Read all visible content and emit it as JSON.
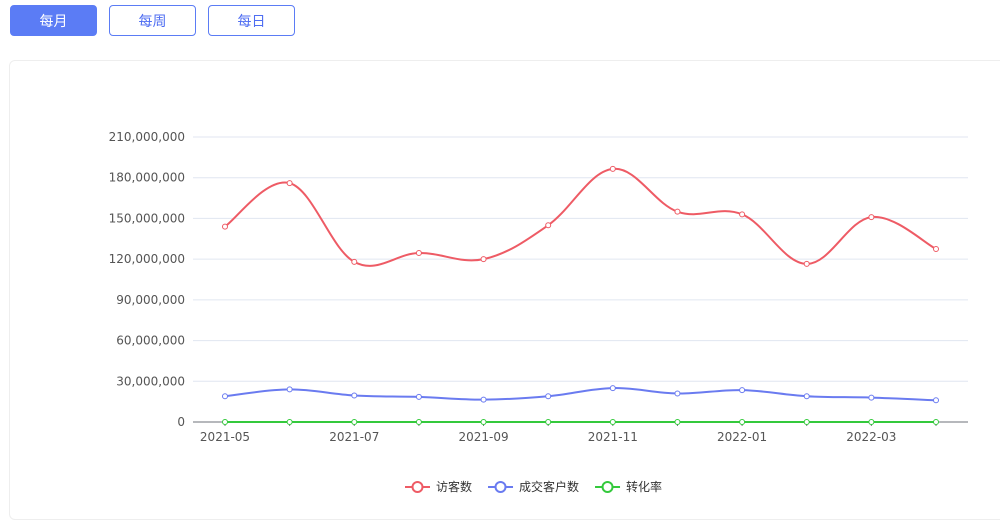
{
  "tabs": [
    {
      "label": "每月",
      "active": true
    },
    {
      "label": "每周",
      "active": false
    },
    {
      "label": "每日",
      "active": false
    }
  ],
  "chart_data": {
    "type": "line",
    "x": [
      "2021-05",
      "2021-06",
      "2021-07",
      "2021-08",
      "2021-09",
      "2021-10",
      "2021-11",
      "2021-12",
      "2022-01",
      "2022-02",
      "2022-03",
      "2022-04"
    ],
    "x_tick_labels": [
      "2021-05",
      "2021-07",
      "2021-09",
      "2021-11",
      "2022-01",
      "2022-03"
    ],
    "y_ticks": [
      "0",
      "30,000,000",
      "60,000,000",
      "90,000,000",
      "120,000,000",
      "150,000,000",
      "180,000,000",
      "210,000,000"
    ],
    "ylim": [
      0,
      210000000
    ],
    "grid": true,
    "legend_position": "bottom-center",
    "series": [
      {
        "name": "访客数",
        "color": "#ee5b65",
        "values": [
          144000000,
          176000000,
          118000000,
          124500000,
          120000000,
          145000000,
          186500000,
          155000000,
          153000000,
          116500000,
          151000000,
          127500000
        ]
      },
      {
        "name": "成交客户数",
        "color": "#6a7bf0",
        "values": [
          19000000,
          24000000,
          19500000,
          18500000,
          16500000,
          19000000,
          25000000,
          21000000,
          23500000,
          19000000,
          18000000,
          16000000
        ]
      },
      {
        "name": "转化率",
        "color": "#34c93c",
        "values": [
          0.13,
          0.14,
          0.17,
          0.15,
          0.14,
          0.13,
          0.13,
          0.14,
          0.15,
          0.16,
          0.12,
          0.13
        ]
      }
    ]
  }
}
